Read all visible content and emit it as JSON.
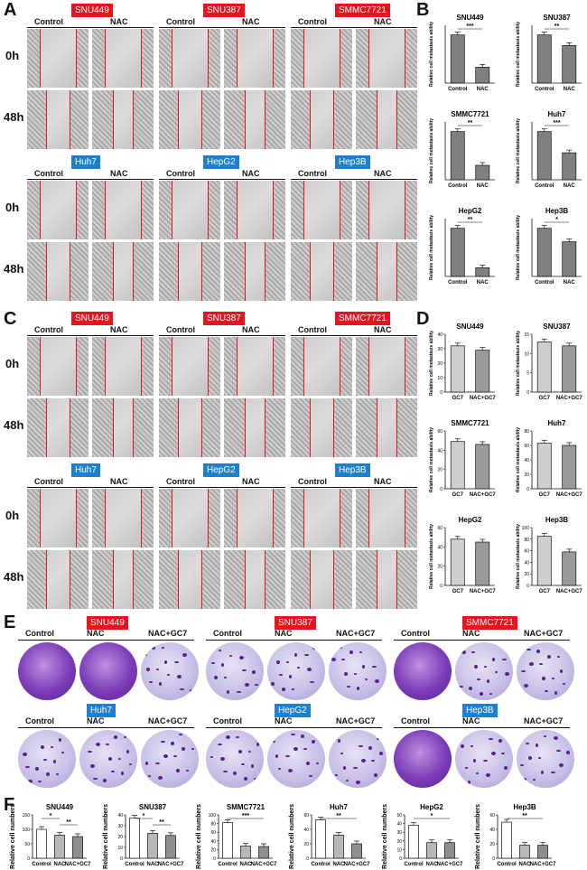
{
  "panels": {
    "A": "A",
    "B": "B",
    "C": "C",
    "D": "D",
    "E": "E",
    "F": "F"
  },
  "conditions": {
    "control": "Control",
    "nac": "NAC",
    "nacgc7": "NAC+GC7"
  },
  "times": {
    "t0": "0h",
    "t48": "48h"
  },
  "cells": {
    "snu449": "SNU449",
    "snu387": "SNU387",
    "smmc7721": "SMMC7721",
    "huh7": "Huh7",
    "hepg2": "HepG2",
    "hep3b": "Hep3B"
  },
  "colors": {
    "red_tag": "#e4151f",
    "blue_tag": "#1e7fd1",
    "scratch_line": "#e01818",
    "bar_gray": "#808080"
  },
  "chart_data": [
    {
      "panel": "B",
      "type": "bar",
      "title": "SNU449",
      "ylabel": "Relative cell metastasis ability",
      "categories": [
        "Control",
        "NAC"
      ],
      "values": [
        1.0,
        0.33
      ],
      "sig": "***"
    },
    {
      "panel": "B",
      "type": "bar",
      "title": "SNU387",
      "ylabel": "Relative cell metastasis ability",
      "categories": [
        "Control",
        "NAC"
      ],
      "values": [
        1.0,
        0.78
      ],
      "sig": "**"
    },
    {
      "panel": "B",
      "type": "bar",
      "title": "SMMC7721",
      "ylabel": "Relative cell metastasis ability",
      "categories": [
        "Control",
        "NAC"
      ],
      "values": [
        1.0,
        0.3
      ],
      "sig": "**"
    },
    {
      "panel": "B",
      "type": "bar",
      "title": "Huh7",
      "ylabel": "Relative cell metastasis ability",
      "categories": [
        "Control",
        "NAC"
      ],
      "values": [
        1.0,
        0.56
      ],
      "sig": "***"
    },
    {
      "panel": "B",
      "type": "bar",
      "title": "HepG2",
      "ylabel": "Relative cell metastasis ability",
      "categories": [
        "Control",
        "NAC"
      ],
      "values": [
        1.0,
        0.18
      ],
      "sig": "**"
    },
    {
      "panel": "B",
      "type": "bar",
      "title": "Hep3B",
      "ylabel": "Relative cell metastasis ability",
      "categories": [
        "Control",
        "NAC"
      ],
      "values": [
        1.0,
        0.72
      ],
      "sig": "*"
    },
    {
      "panel": "D",
      "type": "bar",
      "title": "SNU449",
      "ylabel": "Relative cell metastasis ability",
      "categories": [
        "GC7",
        "NAC+GC7"
      ],
      "values": [
        32,
        29
      ],
      "ylim": [
        0,
        40
      ],
      "ticks": [
        "0",
        "10",
        "20",
        "30",
        "40"
      ]
    },
    {
      "panel": "D",
      "type": "bar",
      "title": "SNU387",
      "ylabel": "Relative cell metastasis ability",
      "categories": [
        "GC7",
        "NAC+GC7"
      ],
      "values": [
        13,
        12
      ],
      "ylim": [
        0,
        15
      ],
      "ticks": [
        "0",
        "5",
        "10",
        "15"
      ]
    },
    {
      "panel": "D",
      "type": "bar",
      "title": "SMMC7721",
      "ylabel": "Relative cell metastasis ability",
      "categories": [
        "GC7",
        "NAC+GC7"
      ],
      "values": [
        49,
        46
      ],
      "ylim": [
        0,
        60
      ],
      "ticks": [
        "0",
        "20",
        "40",
        "60"
      ]
    },
    {
      "panel": "D",
      "type": "bar",
      "title": "Huh7",
      "ylabel": "Relative cell metastasis ability",
      "categories": [
        "GC7",
        "NAC+GC7"
      ],
      "values": [
        63,
        60
      ],
      "ylim": [
        0,
        80
      ],
      "ticks": [
        "0",
        "20",
        "40",
        "60",
        "80"
      ]
    },
    {
      "panel": "D",
      "type": "bar",
      "title": "HepG2",
      "ylabel": "Relative cell metastasis ability",
      "categories": [
        "GC7",
        "NAC+GC7"
      ],
      "values": [
        48,
        45
      ],
      "ylim": [
        0,
        60
      ],
      "ticks": [
        "0",
        "20",
        "40",
        "60"
      ]
    },
    {
      "panel": "D",
      "type": "bar",
      "title": "Hep3B",
      "ylabel": "Relative cell metastasis ability",
      "categories": [
        "GC7",
        "NAC+GC7"
      ],
      "values": [
        85,
        58
      ],
      "ylim": [
        0,
        100
      ],
      "ticks": [
        "0",
        "20",
        "40",
        "60",
        "80",
        "100"
      ]
    },
    {
      "panel": "F",
      "type": "bar",
      "title": "SNU449",
      "ylabel": "Relative cell numbers",
      "categories": [
        "Control",
        "NAC",
        "NAC+GC7"
      ],
      "values": [
        100,
        80,
        75
      ],
      "ylim": [
        0,
        150
      ],
      "ticks": [
        "0",
        "50",
        "100",
        "150"
      ],
      "sig": [
        "*",
        "**"
      ]
    },
    {
      "panel": "F",
      "type": "bar",
      "title": "SNU387",
      "ylabel": "Relative cell numbers",
      "categories": [
        "Control",
        "NAC",
        "NAC+GC7"
      ],
      "values": [
        37,
        23,
        21
      ],
      "ylim": [
        0,
        40
      ],
      "ticks": [
        "0",
        "10",
        "20",
        "30",
        "40"
      ],
      "sig": [
        "*",
        "**"
      ]
    },
    {
      "panel": "F",
      "type": "bar",
      "title": "SMMC7721",
      "ylabel": "Relative cell numbers",
      "categories": [
        "Control",
        "NAC",
        "NAC+GC7"
      ],
      "values": [
        82,
        28,
        27
      ],
      "ylim": [
        0,
        100
      ],
      "ticks": [
        "0",
        "20",
        "40",
        "60",
        "80",
        "100"
      ],
      "sig": [
        "***"
      ]
    },
    {
      "panel": "F",
      "type": "bar",
      "title": "Huh7",
      "ylabel": "Relative cell numbers",
      "categories": [
        "Control",
        "NAC",
        "NAC+GC7"
      ],
      "values": [
        53,
        32,
        20
      ],
      "ylim": [
        0,
        60
      ],
      "ticks": [
        "0",
        "20",
        "40",
        "60"
      ],
      "sig": [
        "**"
      ]
    },
    {
      "panel": "F",
      "type": "bar",
      "title": "HepG2",
      "ylabel": "Relative cell numbers",
      "categories": [
        "Control",
        "NAC",
        "NAC+GC7"
      ],
      "values": [
        38,
        18,
        18
      ],
      "ylim": [
        0,
        50
      ],
      "ticks": [
        "0",
        "10",
        "20",
        "30",
        "40",
        "50"
      ],
      "sig": [
        "*"
      ]
    },
    {
      "panel": "F",
      "type": "bar",
      "title": "Hep3B",
      "ylabel": "Relative cell numbers",
      "categories": [
        "Control",
        "NAC",
        "NAC+GC7"
      ],
      "values": [
        50,
        18,
        18
      ],
      "ylim": [
        0,
        60
      ],
      "ticks": [
        "0",
        "20",
        "40",
        "60"
      ],
      "sig": [
        "**"
      ]
    }
  ]
}
